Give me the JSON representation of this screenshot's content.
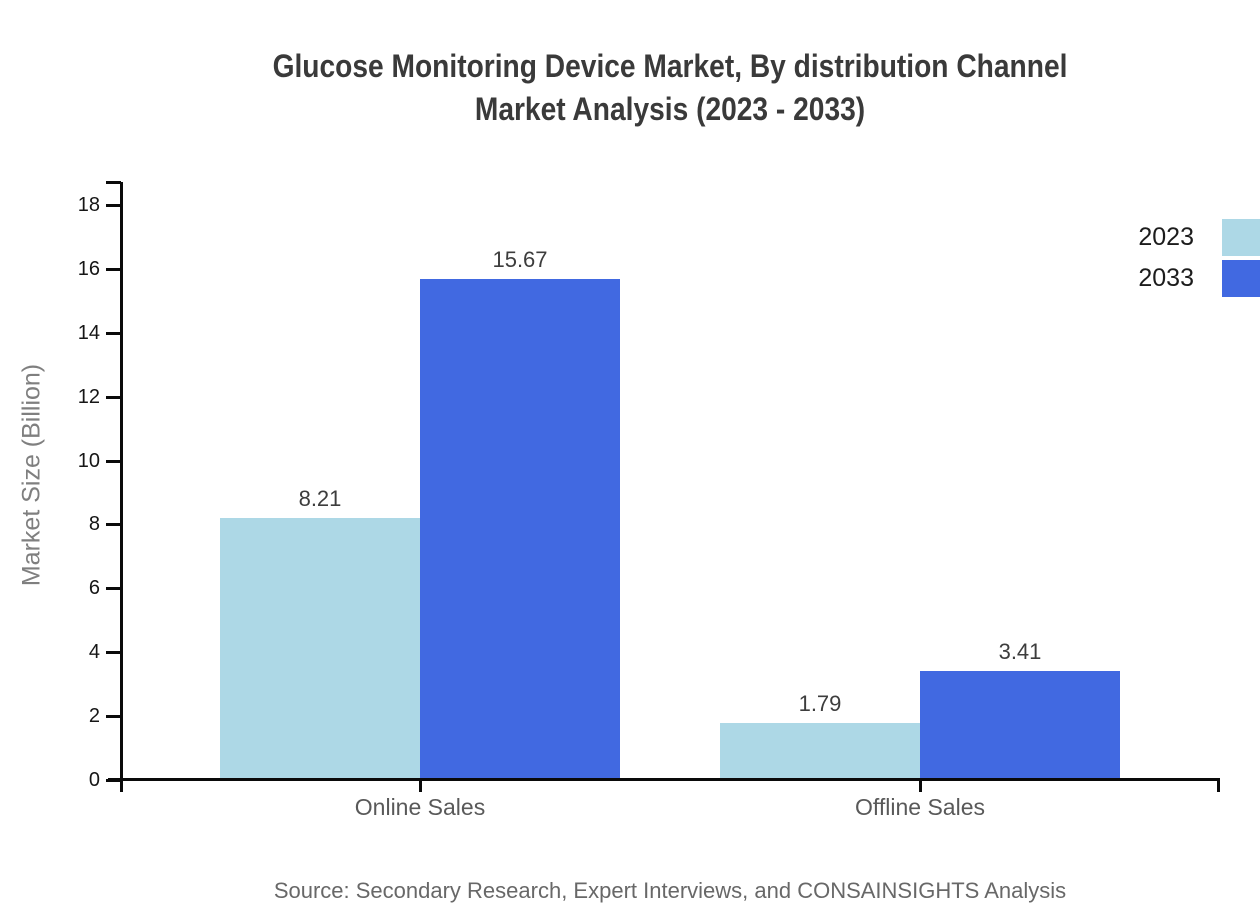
{
  "title": {
    "line1": "Glucose Monitoring Device Market, By distribution Channel",
    "line2": "Market Analysis (2023 - 2033)"
  },
  "source": "Source: Secondary Research, Expert Interviews, and CONSAINSIGHTS Analysis",
  "chart_data": {
    "type": "bar",
    "title": "Glucose Monitoring Device Market, By distribution Channel Market Analysis (2023 - 2033)",
    "categories": [
      "Online Sales",
      "Offline Sales"
    ],
    "series": [
      {
        "name": "2023",
        "color": "#ADD8E6",
        "values": [
          8.21,
          1.79
        ]
      },
      {
        "name": "2033",
        "color": "#4169E1",
        "values": [
          15.67,
          3.41
        ]
      }
    ],
    "xlabel": "",
    "ylabel": "Market Size (Billion)",
    "ylim": [
      0,
      18
    ],
    "yticks": [
      0,
      2,
      4,
      6,
      8,
      10,
      12,
      14,
      16,
      18
    ],
    "grid": false,
    "legend_position": "top-right",
    "value_labels": true,
    "axis_color": "#0a0a0a"
  }
}
